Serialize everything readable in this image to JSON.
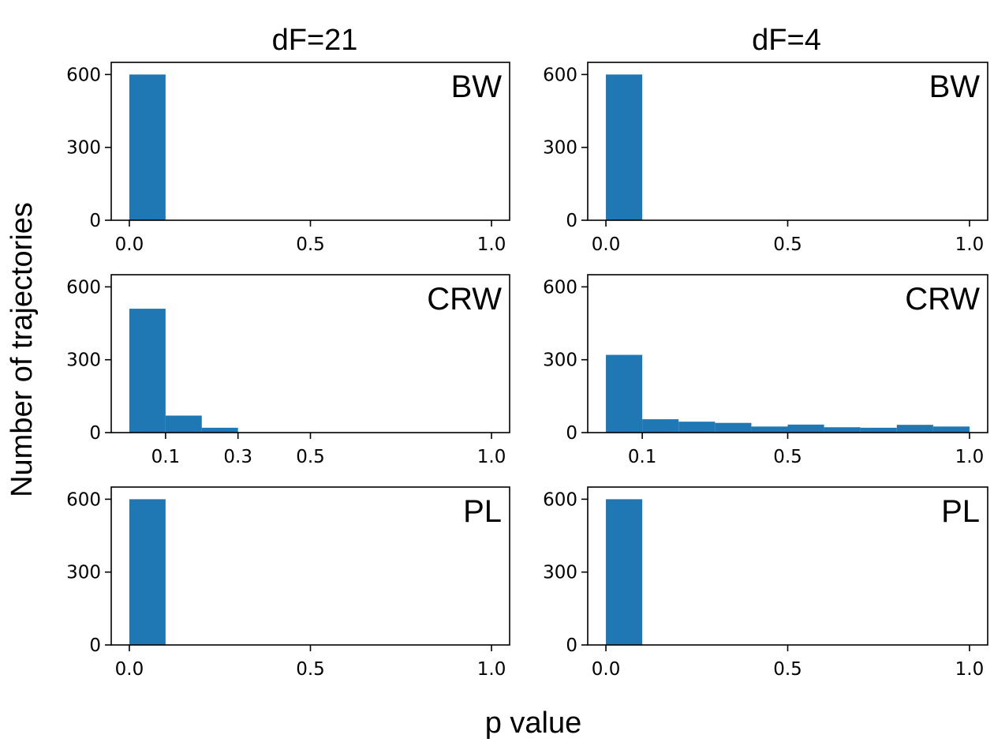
{
  "figure": {
    "ylabel": "Number of trajectories",
    "xlabel": "p value",
    "column_titles": [
      "dF=21",
      "dF=4"
    ]
  },
  "chart_data": [
    {
      "type": "bar",
      "column": "dF=21",
      "label": "BW",
      "bin_edges": [
        0.0,
        0.1,
        0.2,
        0.3,
        0.4,
        0.5,
        0.6,
        0.7,
        0.8,
        0.9,
        1.0
      ],
      "values": [
        600,
        0,
        0,
        0,
        0,
        0,
        0,
        0,
        0,
        0
      ],
      "xticks": [
        0.0,
        0.5,
        1.0
      ],
      "xtick_labels": [
        "0.0",
        "0.5",
        "1.0"
      ],
      "yticks": [
        0,
        300,
        600
      ],
      "ytick_labels": [
        "0",
        "300",
        "600"
      ],
      "xlim": [
        -0.05,
        1.05
      ],
      "ylim": [
        0,
        650
      ],
      "color": "#1f77b4"
    },
    {
      "type": "bar",
      "column": "dF=4",
      "label": "BW",
      "bin_edges": [
        0.0,
        0.1,
        0.2,
        0.3,
        0.4,
        0.5,
        0.6,
        0.7,
        0.8,
        0.9,
        1.0
      ],
      "values": [
        600,
        0,
        0,
        0,
        0,
        0,
        0,
        0,
        0,
        0
      ],
      "xticks": [
        0.0,
        0.5,
        1.0
      ],
      "xtick_labels": [
        "0.0",
        "0.5",
        "1.0"
      ],
      "yticks": [
        0,
        300,
        600
      ],
      "ytick_labels": [
        "0",
        "300",
        "600"
      ],
      "xlim": [
        -0.05,
        1.05
      ],
      "ylim": [
        0,
        650
      ],
      "color": "#1f77b4"
    },
    {
      "type": "bar",
      "column": "dF=21",
      "label": "CRW",
      "bin_edges": [
        0.0,
        0.1,
        0.2,
        0.3,
        0.4,
        0.5,
        0.6,
        0.7,
        0.8,
        0.9,
        1.0
      ],
      "values": [
        510,
        70,
        20,
        0,
        0,
        0,
        0,
        0,
        0,
        0
      ],
      "xticks": [
        0.1,
        0.3,
        0.5,
        1.0
      ],
      "xtick_labels": [
        "0.1",
        "0.3",
        "0.5",
        "1.0"
      ],
      "yticks": [
        0,
        300,
        600
      ],
      "ytick_labels": [
        "0",
        "300",
        "600"
      ],
      "xlim": [
        -0.05,
        1.05
      ],
      "ylim": [
        0,
        650
      ],
      "color": "#1f77b4"
    },
    {
      "type": "bar",
      "column": "dF=4",
      "label": "CRW",
      "bin_edges": [
        0.0,
        0.1,
        0.2,
        0.3,
        0.4,
        0.5,
        0.6,
        0.7,
        0.8,
        0.9,
        1.0
      ],
      "values": [
        320,
        55,
        45,
        40,
        25,
        33,
        22,
        20,
        32,
        25
      ],
      "xticks": [
        0.1,
        0.5,
        1.0
      ],
      "xtick_labels": [
        "0.1",
        "0.5",
        "1.0"
      ],
      "yticks": [
        0,
        300,
        600
      ],
      "ytick_labels": [
        "0",
        "300",
        "600"
      ],
      "xlim": [
        -0.05,
        1.05
      ],
      "ylim": [
        0,
        650
      ],
      "color": "#1f77b4"
    },
    {
      "type": "bar",
      "column": "dF=21",
      "label": "PL",
      "bin_edges": [
        0.0,
        0.1,
        0.2,
        0.3,
        0.4,
        0.5,
        0.6,
        0.7,
        0.8,
        0.9,
        1.0
      ],
      "values": [
        600,
        0,
        0,
        0,
        0,
        0,
        0,
        0,
        0,
        0
      ],
      "xticks": [
        0.0,
        0.5,
        1.0
      ],
      "xtick_labels": [
        "0.0",
        "0.5",
        "1.0"
      ],
      "yticks": [
        0,
        300,
        600
      ],
      "ytick_labels": [
        "0",
        "300",
        "600"
      ],
      "xlim": [
        -0.05,
        1.05
      ],
      "ylim": [
        0,
        650
      ],
      "color": "#1f77b4"
    },
    {
      "type": "bar",
      "column": "dF=4",
      "label": "PL",
      "bin_edges": [
        0.0,
        0.1,
        0.2,
        0.3,
        0.4,
        0.5,
        0.6,
        0.7,
        0.8,
        0.9,
        1.0
      ],
      "values": [
        600,
        0,
        0,
        0,
        0,
        0,
        0,
        0,
        0,
        0
      ],
      "xticks": [
        0.0,
        0.5,
        1.0
      ],
      "xtick_labels": [
        "0.0",
        "0.5",
        "1.0"
      ],
      "yticks": [
        0,
        300,
        600
      ],
      "ytick_labels": [
        "0",
        "300",
        "600"
      ],
      "xlim": [
        -0.05,
        1.05
      ],
      "ylim": [
        0,
        650
      ],
      "color": "#1f77b4"
    }
  ]
}
